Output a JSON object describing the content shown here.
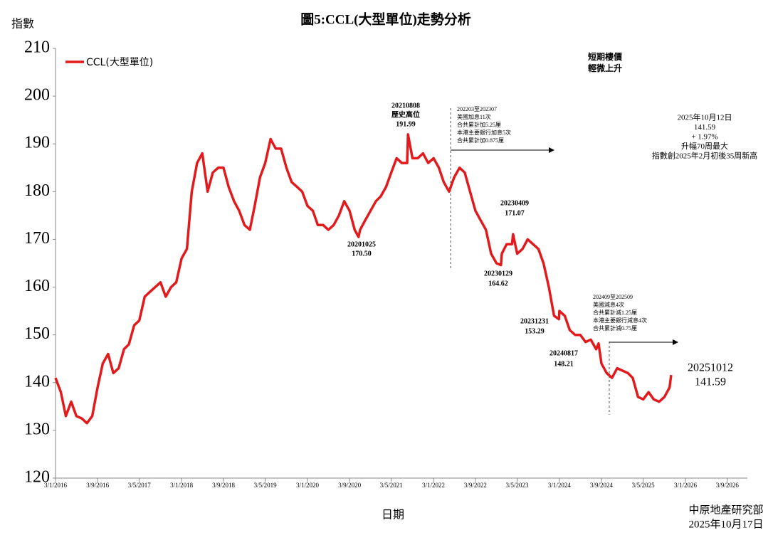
{
  "chart_data": {
    "type": "line",
    "title": "圖5:CCL(大型單位)走勢分析",
    "y_label": "指數",
    "x_label": "日期",
    "source": [
      "中原地產研究部",
      "2025年10月17日"
    ],
    "ylim": [
      120,
      210
    ],
    "yticks": [
      120,
      130,
      140,
      150,
      160,
      170,
      180,
      190,
      200,
      210
    ],
    "xlim": [
      "2016-01-03",
      "2026-12-28"
    ],
    "xticks": [
      {
        "value": "2016-01-03",
        "label": "3/1/2016"
      },
      {
        "value": "2016-09-03",
        "label": "3/9/2016"
      },
      {
        "value": "2017-05-03",
        "label": "3/5/2017"
      },
      {
        "value": "2018-01-03",
        "label": "3/1/2018"
      },
      {
        "value": "2018-09-03",
        "label": "3/9/2018"
      },
      {
        "value": "2019-05-03",
        "label": "3/5/2019"
      },
      {
        "value": "2020-01-03",
        "label": "3/1/2020"
      },
      {
        "value": "2020-09-03",
        "label": "3/9/2020"
      },
      {
        "value": "2021-05-03",
        "label": "3/5/2021"
      },
      {
        "value": "2022-01-03",
        "label": "3/1/2022"
      },
      {
        "value": "2022-09-03",
        "label": "3/9/2022"
      },
      {
        "value": "2023-05-03",
        "label": "3/5/2023"
      },
      {
        "value": "2024-01-03",
        "label": "3/1/2024"
      },
      {
        "value": "2024-09-03",
        "label": "3/9/2024"
      },
      {
        "value": "2025-05-03",
        "label": "3/5/2025"
      },
      {
        "value": "2026-01-03",
        "label": "3/1/2026"
      },
      {
        "value": "2026-09-03",
        "label": "3/9/2026"
      }
    ],
    "legend": "top-left",
    "grid": false,
    "x": [
      "2016-01-03",
      "2016-02-03",
      "2016-03-03",
      "2016-04-03",
      "2016-05-03",
      "2016-06-03",
      "2016-07-03",
      "2016-08-03",
      "2016-09-03",
      "2016-10-03",
      "2016-11-03",
      "2016-12-03",
      "2017-01-03",
      "2017-02-03",
      "2017-03-03",
      "2017-04-03",
      "2017-05-03",
      "2017-06-03",
      "2017-07-03",
      "2017-08-03",
      "2017-09-03",
      "2017-10-03",
      "2017-11-03",
      "2017-12-03",
      "2018-01-03",
      "2018-02-03",
      "2018-03-03",
      "2018-04-03",
      "2018-05-03",
      "2018-06-03",
      "2018-07-03",
      "2018-08-03",
      "2018-09-03",
      "2018-10-03",
      "2018-11-03",
      "2018-12-03",
      "2019-01-03",
      "2019-02-03",
      "2019-03-03",
      "2019-04-03",
      "2019-05-03",
      "2019-06-03",
      "2019-07-03",
      "2019-08-03",
      "2019-09-03",
      "2019-10-03",
      "2019-11-03",
      "2019-12-03",
      "2020-01-03",
      "2020-02-03",
      "2020-03-03",
      "2020-04-03",
      "2020-05-03",
      "2020-06-03",
      "2020-07-03",
      "2020-08-03",
      "2020-09-03",
      "2020-10-03",
      "2020-10-25",
      "2020-11-03",
      "2020-12-03",
      "2021-01-03",
      "2021-02-03",
      "2021-03-03",
      "2021-04-03",
      "2021-05-03",
      "2021-06-03",
      "2021-07-03",
      "2021-08-03",
      "2021-08-08",
      "2021-09-03",
      "2021-10-03",
      "2021-11-03",
      "2021-12-03",
      "2022-01-03",
      "2022-02-03",
      "2022-03-03",
      "2022-04-03",
      "2022-05-03",
      "2022-06-03",
      "2022-07-03",
      "2022-08-03",
      "2022-09-03",
      "2022-10-03",
      "2022-11-03",
      "2022-12-03",
      "2023-01-03",
      "2023-01-29",
      "2023-02-03",
      "2023-03-03",
      "2023-04-03",
      "2023-04-09",
      "2023-05-03",
      "2023-06-03",
      "2023-07-03",
      "2023-08-03",
      "2023-09-03",
      "2023-10-03",
      "2023-11-03",
      "2023-12-03",
      "2023-12-31",
      "2024-01-03",
      "2024-02-03",
      "2024-03-03",
      "2024-04-03",
      "2024-05-03",
      "2024-06-03",
      "2024-07-03",
      "2024-08-03",
      "2024-08-17",
      "2024-09-03",
      "2024-10-03",
      "2024-11-03",
      "2024-12-03",
      "2025-01-03",
      "2025-02-03",
      "2025-03-03",
      "2025-04-03",
      "2025-05-03",
      "2025-06-03",
      "2025-07-03",
      "2025-08-03",
      "2025-09-03",
      "2025-10-03",
      "2025-10-12"
    ],
    "series": [
      {
        "name": "CCL(大型單位)",
        "color": "#e31a1c",
        "values": [
          141,
          138,
          133,
          136,
          133,
          132.5,
          131.5,
          133,
          139,
          144,
          146,
          142,
          143,
          147,
          148,
          152,
          153,
          158,
          159,
          160,
          161,
          158,
          160,
          161,
          166,
          168,
          180,
          186,
          188,
          180,
          184,
          185,
          185,
          181,
          178,
          176,
          173,
          172,
          177,
          183,
          186,
          191,
          189,
          189,
          185,
          182,
          181,
          180,
          177,
          176,
          173,
          173,
          172,
          173,
          175,
          178,
          176,
          172,
          170.5,
          172,
          174,
          176,
          178,
          179,
          181,
          184,
          187,
          186,
          186,
          191.99,
          187,
          187,
          188,
          186,
          187,
          185,
          182,
          180,
          183,
          185,
          184,
          180,
          176,
          174,
          172,
          167,
          165,
          164.62,
          167,
          169,
          169,
          171.07,
          167,
          168,
          170,
          169,
          168,
          165,
          160,
          154,
          153.29,
          155,
          154,
          151,
          150,
          150,
          148.5,
          149,
          147,
          148.21,
          144,
          142,
          141,
          143,
          142.5,
          142,
          141,
          137,
          136.5,
          138,
          136.5,
          136,
          137,
          139,
          141.59
        ]
      }
    ],
    "annotations": [
      {
        "lines": [
          "短期樓價",
          "輕微上升"
        ]
      },
      {
        "lines": [
          "20210808",
          "歷史高位",
          "191.99"
        ]
      },
      {
        "lines": [
          "202203至202307",
          "美國加息11次",
          "合共累計加5.25厘",
          "本港主要銀行加息5次",
          "合共累計加0.875厘"
        ]
      },
      {
        "lines": [
          "2025年10月12日",
          "141.59",
          "+ 1.97%",
          "升幅70周最大",
          "指數創2025年2月初後35周新高"
        ]
      },
      {
        "lines": [
          "20230409",
          "171.07"
        ]
      },
      {
        "lines": [
          "20201025",
          "170.50"
        ]
      },
      {
        "lines": [
          "20230129",
          "164.62"
        ]
      },
      {
        "lines": [
          "20231231",
          "153.29"
        ]
      },
      {
        "lines": [
          "20240817",
          "148.21"
        ]
      },
      {
        "lines": [
          "202409至202509",
          "美國減息4次",
          "合共累計減1.25厘",
          "本港主要銀行減息4次",
          "合共累計減0.75厘"
        ]
      },
      {
        "lines": [
          "20251012",
          "141.59"
        ]
      }
    ]
  }
}
